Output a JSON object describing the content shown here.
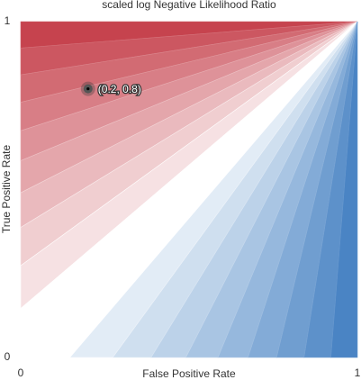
{
  "chart_data": {
    "type": "contour",
    "title": "scaled log Negative Likelihood Ratio",
    "xlabel": "False Positive Rate",
    "ylabel": "True Positive Rate",
    "xlim": [
      0,
      1
    ],
    "ylim": [
      0,
      1
    ],
    "xticks": [
      0,
      1
    ],
    "yticks": [
      0,
      1
    ],
    "levels": [
      -1,
      -0.9,
      -0.8,
      -0.7,
      -0.6,
      -0.5,
      -0.4,
      -0.3,
      -0.2,
      -0.1,
      0.1,
      0.2,
      0.3,
      0.4,
      0.5,
      0.6,
      0.7,
      0.8,
      0.9,
      1
    ],
    "colors": {
      "low": "#c6434e",
      "mid": "#ffffff",
      "high": "#4a84c4"
    },
    "points": [
      {
        "x": 0.2,
        "y": 0.8,
        "label": "(0.2, 0.8)"
      }
    ]
  }
}
